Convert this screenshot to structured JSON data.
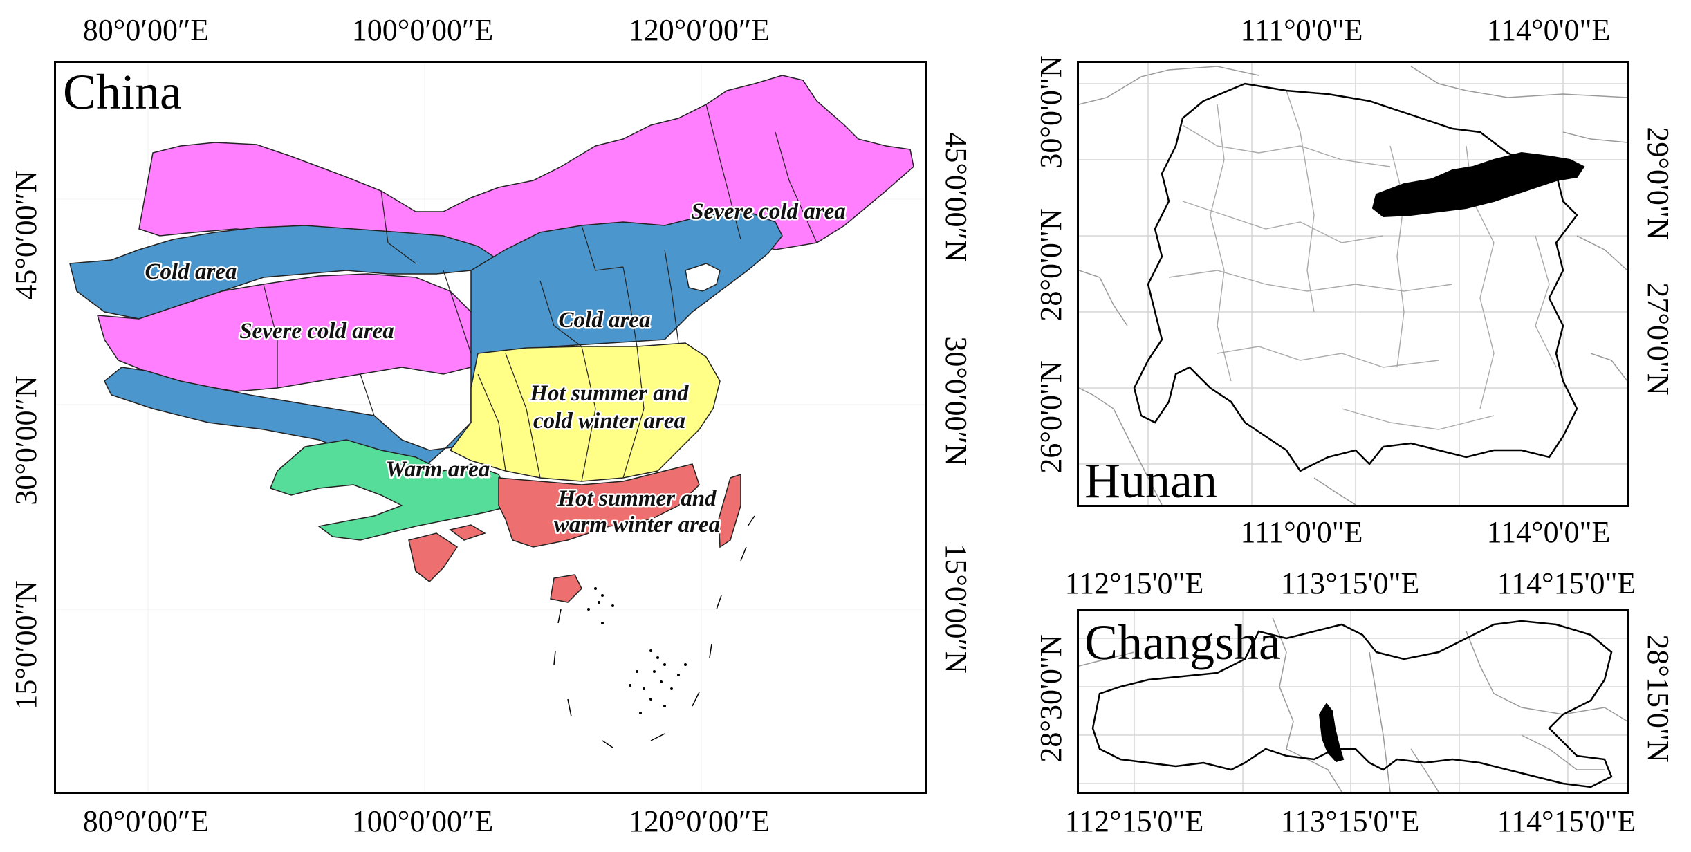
{
  "china": {
    "title": "China",
    "top_ticks": [
      "80°0′00″E",
      "100°0′00″E",
      "120°0′00″E"
    ],
    "bottom_ticks": [
      "80°0′00″E",
      "100°0′00″E",
      "120°0′00″E"
    ],
    "left_ticks": [
      "45°0′00″N",
      "30°0′00″N",
      "15°0′00″N"
    ],
    "right_ticks": [
      "45°0′00″N",
      "30°0′00″N",
      "15°0′00″N"
    ],
    "zones": [
      {
        "name": "severe_cold_ne",
        "label": "Severe cold area",
        "color": "#ff7fff"
      },
      {
        "name": "cold_w",
        "label": "Cold area",
        "color": "#4b96cc"
      },
      {
        "name": "severe_cold_w",
        "label": "Severe cold area",
        "color": "#ff7fff"
      },
      {
        "name": "cold_c",
        "label": "Cold area",
        "color": "#4b96cc"
      },
      {
        "name": "hot_summer_cold_winter",
        "label_line1": "Hot summer and",
        "label_line2": "cold winter area",
        "color": "#ffff88"
      },
      {
        "name": "warm",
        "label": "Warm area",
        "color": "#55dd99"
      },
      {
        "name": "hot_summer_warm_winter",
        "label_line1": "Hot summer and",
        "label_line2": "warm winter area",
        "color": "#ee6f6f"
      }
    ]
  },
  "hunan": {
    "title": "Hunan",
    "top_ticks": [
      "111°0'0\"E",
      "114°0'0\"E"
    ],
    "bottom_ticks": [
      "111°0'0\"E",
      "114°0'0\"E"
    ],
    "left_ticks": [
      "30°0'0\"N",
      "28°0'0\"N",
      "26°0'0\"N"
    ],
    "right_ticks": [
      "29°0'0\"N",
      "27°0'0\"N"
    ]
  },
  "changsha": {
    "title": "Changsha",
    "top_ticks": [
      "112°15'0\"E",
      "113°15'0\"E",
      "114°15'0\"E"
    ],
    "bottom_ticks": [
      "112°15'0\"E",
      "113°15'0\"E",
      "114°15'0\"E"
    ],
    "left_ticks": [
      "28°30'0\"N"
    ],
    "right_ticks": [
      "28°15'0\"N"
    ]
  }
}
